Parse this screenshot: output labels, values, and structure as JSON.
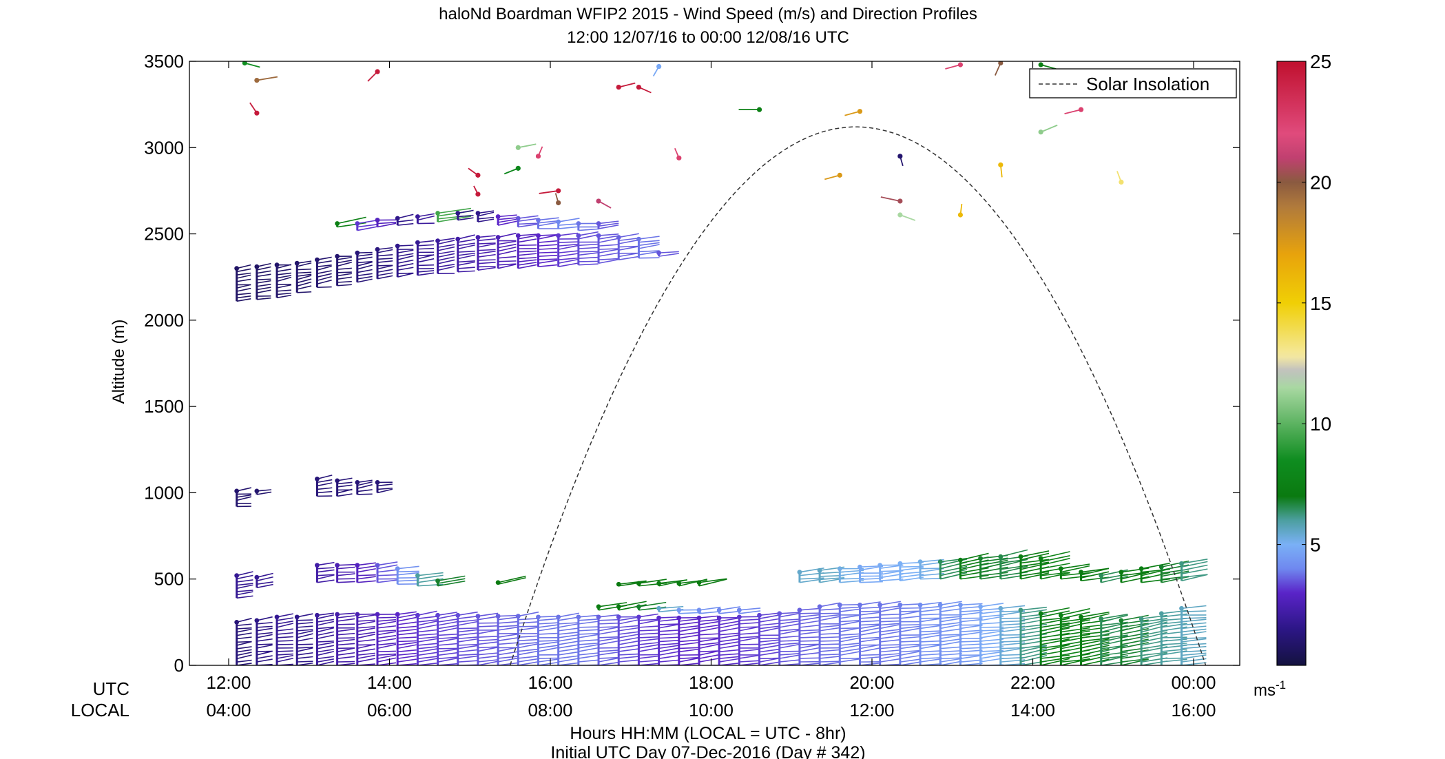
{
  "chart_data": {
    "type": "scatter",
    "title": "haloNd Boardman WFIP2 2015 - Wind Speed (m/s) and Direction Profiles",
    "subtitle": "12:00 12/07/16 to 00:00 12/08/16  UTC",
    "ylabel": "Altitude (m)",
    "xlabel": "Hours HH:MM  (LOCAL = UTC - 8hr)",
    "xlabel2": "Initial UTC Day 07-Dec-2016 (Day # 342)",
    "row_label_utc": "UTC",
    "row_label_local": "LOCAL",
    "xlim": [
      11.5,
      24.3
    ],
    "ylim": [
      0,
      3500
    ],
    "yticks": [
      0,
      500,
      1000,
      1500,
      2000,
      2500,
      3000,
      3500
    ],
    "ytick_labels": [
      "0",
      "500",
      "1000",
      "1500",
      "2000",
      "2500",
      "3000",
      "3500"
    ],
    "xticks": [
      12,
      14,
      16,
      18,
      20,
      22,
      24
    ],
    "utc_labels": [
      "12:00",
      "14:00",
      "16:00",
      "18:00",
      "20:00",
      "22:00",
      "00:00"
    ],
    "local_labels": [
      "04:00",
      "06:00",
      "08:00",
      "10:00",
      "12:00",
      "14:00",
      "16:00"
    ],
    "legend": {
      "label": "Solar Insolation",
      "position": "top-right"
    },
    "solar_insolation": {
      "start_hour": 15.5,
      "end_hour": 24.15,
      "peak_hour": 19.8,
      "peak_altitude": 3120,
      "style": "dashed",
      "color": "#333333"
    },
    "colorbar": {
      "min": 0,
      "max": 25,
      "ticks": [
        5,
        10,
        15,
        20,
        25
      ],
      "tick_labels": [
        "5",
        "10",
        "15",
        "20",
        "25"
      ],
      "unit": "ms",
      "unit_exp": "-1",
      "stops": [
        {
          "v": 0,
          "c": "#14123f"
        },
        {
          "v": 1.5,
          "c": "#2c1686"
        },
        {
          "v": 3,
          "c": "#5a24c8"
        },
        {
          "v": 4,
          "c": "#6f88ef"
        },
        {
          "v": 5,
          "c": "#7ab0f6"
        },
        {
          "v": 6,
          "c": "#4c9fa0"
        },
        {
          "v": 7,
          "c": "#0a7a10"
        },
        {
          "v": 8.5,
          "c": "#0f8d20"
        },
        {
          "v": 11.5,
          "c": "#a9d8a2"
        },
        {
          "v": 12.2,
          "c": "#c0c0c0"
        },
        {
          "v": 12.8,
          "c": "#f5e9a0"
        },
        {
          "v": 15,
          "c": "#f0cf05"
        },
        {
          "v": 17,
          "c": "#e8a30c"
        },
        {
          "v": 19,
          "c": "#b07a3c"
        },
        {
          "v": 20,
          "c": "#8a5a40"
        },
        {
          "v": 21,
          "c": "#c04070"
        },
        {
          "v": 22,
          "c": "#e04b7c"
        },
        {
          "v": 25,
          "c": "#c0102e"
        }
      ]
    },
    "profiles": [
      {
        "t": 12.1,
        "bands": [
          [
            0,
            250,
            1.2
          ],
          [
            390,
            520,
            1.8
          ],
          [
            920,
            1010,
            1.0
          ],
          [
            2110,
            2300,
            0.8
          ]
        ]
      },
      {
        "t": 12.35,
        "bands": [
          [
            0,
            260,
            1.5
          ],
          [
            450,
            510,
            1.8
          ],
          [
            990,
            1010,
            1.0
          ],
          [
            2120,
            2310,
            0.8
          ]
        ]
      },
      {
        "t": 12.6,
        "bands": [
          [
            0,
            280,
            1.8
          ],
          [
            2130,
            2320,
            0.9
          ]
        ]
      },
      {
        "t": 12.85,
        "bands": [
          [
            0,
            280,
            1.6
          ],
          [
            2160,
            2330,
            0.9
          ]
        ]
      },
      {
        "t": 13.1,
        "bands": [
          [
            0,
            290,
            2.0
          ],
          [
            480,
            580,
            2.2
          ],
          [
            980,
            1080,
            1.2
          ],
          [
            2190,
            2350,
            1.0
          ]
        ]
      },
      {
        "t": 13.35,
        "bands": [
          [
            0,
            295,
            2.3
          ],
          [
            480,
            580,
            2.5
          ],
          [
            980,
            1070,
            1.2
          ],
          [
            2200,
            2370,
            1.0
          ],
          [
            2540,
            2560,
            7.5
          ]
        ]
      },
      {
        "t": 13.6,
        "bands": [
          [
            0,
            295,
            2.5
          ],
          [
            480,
            580,
            2.8
          ],
          [
            990,
            1060,
            1.2
          ],
          [
            2220,
            2390,
            1.2
          ],
          [
            2520,
            2560,
            3.2
          ]
        ]
      },
      {
        "t": 13.85,
        "bands": [
          [
            0,
            295,
            2.8
          ],
          [
            480,
            580,
            3.5
          ],
          [
            1000,
            1060,
            1.2
          ],
          [
            2240,
            2410,
            1.3
          ],
          [
            2540,
            2580,
            2.8
          ]
        ]
      },
      {
        "t": 14.1,
        "bands": [
          [
            0,
            295,
            3.0
          ],
          [
            470,
            560,
            4.2
          ],
          [
            2250,
            2430,
            1.6
          ],
          [
            2550,
            2590,
            1.6
          ]
        ]
      },
      {
        "t": 14.35,
        "bands": [
          [
            0,
            290,
            3.2
          ],
          [
            460,
            520,
            6.0
          ],
          [
            2260,
            2450,
            1.8
          ],
          [
            2560,
            2600,
            2.0
          ]
        ]
      },
      {
        "t": 14.6,
        "bands": [
          [
            0,
            290,
            3.3
          ],
          [
            460,
            490,
            6.8
          ],
          [
            2270,
            2460,
            2.0
          ],
          [
            2570,
            2620,
            9.5
          ]
        ]
      },
      {
        "t": 14.85,
        "bands": [
          [
            0,
            290,
            3.4
          ],
          [
            2280,
            2470,
            2.2
          ],
          [
            2580,
            2620,
            1.5
          ]
        ]
      },
      {
        "t": 15.1,
        "bands": [
          [
            0,
            285,
            3.5
          ],
          [
            2290,
            2480,
            2.4
          ],
          [
            2570,
            2620,
            1.6
          ]
        ]
      },
      {
        "t": 15.35,
        "bands": [
          [
            0,
            285,
            3.6
          ],
          [
            470,
            480,
            7.0
          ],
          [
            2300,
            2480,
            2.6
          ],
          [
            2550,
            2600,
            3.0
          ]
        ]
      },
      {
        "t": 15.6,
        "bands": [
          [
            0,
            285,
            3.7
          ],
          [
            2300,
            2490,
            2.8
          ],
          [
            2540,
            2590,
            3.5
          ]
        ]
      },
      {
        "t": 15.85,
        "bands": [
          [
            0,
            280,
            3.8
          ],
          [
            2310,
            2490,
            3.0
          ],
          [
            2530,
            2580,
            3.8
          ]
        ]
      },
      {
        "t": 16.1,
        "bands": [
          [
            0,
            280,
            3.8
          ],
          [
            2310,
            2490,
            3.2
          ],
          [
            2530,
            2570,
            4.0
          ]
        ]
      },
      {
        "t": 16.35,
        "bands": [
          [
            0,
            280,
            3.8
          ],
          [
            2320,
            2490,
            3.4
          ],
          [
            2520,
            2560,
            3.8
          ]
        ]
      },
      {
        "t": 16.6,
        "bands": [
          [
            0,
            280,
            3.6
          ],
          [
            320,
            340,
            7.2
          ],
          [
            2330,
            2490,
            3.5
          ],
          [
            2530,
            2560,
            3.5
          ]
        ]
      },
      {
        "t": 16.85,
        "bands": [
          [
            0,
            280,
            3.4
          ],
          [
            320,
            340,
            7.0
          ],
          [
            460,
            470,
            7.0
          ],
          [
            2350,
            2480,
            3.6
          ]
        ]
      },
      {
        "t": 17.1,
        "bands": [
          [
            0,
            280,
            3.2
          ],
          [
            320,
            340,
            6.8
          ],
          [
            460,
            475,
            7.0
          ],
          [
            2360,
            2470,
            3.8
          ]
        ]
      },
      {
        "t": 17.35,
        "bands": [
          [
            0,
            275,
            3.1
          ],
          [
            310,
            330,
            5.5
          ],
          [
            460,
            475,
            7.2
          ],
          [
            2370,
            2390,
            3.5
          ]
        ]
      },
      {
        "t": 17.6,
        "bands": [
          [
            0,
            275,
            3.0
          ],
          [
            300,
            320,
            4.5
          ],
          [
            460,
            475,
            7.2
          ]
        ]
      },
      {
        "t": 17.85,
        "bands": [
          [
            0,
            275,
            3.0
          ],
          [
            300,
            320,
            4.2
          ],
          [
            460,
            480,
            7.0
          ]
        ]
      },
      {
        "t": 18.1,
        "bands": [
          [
            0,
            275,
            3.1
          ],
          [
            300,
            320,
            4.0
          ]
        ]
      },
      {
        "t": 18.35,
        "bands": [
          [
            0,
            280,
            3.2
          ],
          [
            300,
            320,
            4.0
          ]
        ]
      },
      {
        "t": 18.6,
        "bands": [
          [
            0,
            290,
            3.3
          ]
        ]
      },
      {
        "t": 18.85,
        "bands": [
          [
            0,
            300,
            3.5
          ]
        ]
      },
      {
        "t": 19.1,
        "bands": [
          [
            0,
            320,
            3.6
          ],
          [
            480,
            540,
            5.5
          ]
        ]
      },
      {
        "t": 19.35,
        "bands": [
          [
            0,
            340,
            3.7
          ],
          [
            480,
            550,
            5.6
          ]
        ]
      },
      {
        "t": 19.6,
        "bands": [
          [
            0,
            350,
            3.8
          ],
          [
            480,
            560,
            5.2
          ]
        ]
      },
      {
        "t": 19.85,
        "bands": [
          [
            0,
            350,
            3.8
          ],
          [
            480,
            570,
            4.8
          ]
        ]
      },
      {
        "t": 20.1,
        "bands": [
          [
            0,
            350,
            3.8
          ],
          [
            490,
            580,
            4.9
          ]
        ]
      },
      {
        "t": 20.35,
        "bands": [
          [
            0,
            350,
            3.9
          ],
          [
            490,
            590,
            5.0
          ]
        ]
      },
      {
        "t": 20.6,
        "bands": [
          [
            0,
            350,
            4.1
          ],
          [
            500,
            600,
            5.2
          ]
        ]
      },
      {
        "t": 20.85,
        "bands": [
          [
            0,
            350,
            4.2
          ],
          [
            500,
            600,
            6.5
          ]
        ]
      },
      {
        "t": 21.1,
        "bands": [
          [
            0,
            350,
            4.4
          ],
          [
            500,
            610,
            7.2
          ]
        ]
      },
      {
        "t": 21.35,
        "bands": [
          [
            0,
            340,
            4.8
          ],
          [
            500,
            620,
            6.8
          ]
        ]
      },
      {
        "t": 21.6,
        "bands": [
          [
            0,
            330,
            5.4
          ],
          [
            500,
            630,
            6.6
          ]
        ]
      },
      {
        "t": 21.85,
        "bands": [
          [
            0,
            320,
            6.2
          ],
          [
            500,
            630,
            7.2
          ]
        ]
      },
      {
        "t": 22.1,
        "bands": [
          [
            0,
            300,
            7.4
          ],
          [
            500,
            620,
            7.6
          ]
        ]
      },
      {
        "t": 22.35,
        "bands": [
          [
            0,
            290,
            7.6
          ],
          [
            500,
            560,
            7.4
          ]
        ]
      },
      {
        "t": 22.6,
        "bands": [
          [
            0,
            280,
            7.2
          ],
          [
            490,
            540,
            7.0
          ]
        ]
      },
      {
        "t": 22.85,
        "bands": [
          [
            0,
            270,
            6.5
          ],
          [
            480,
            520,
            6.5
          ]
        ]
      },
      {
        "t": 23.1,
        "bands": [
          [
            0,
            260,
            6.8
          ],
          [
            480,
            540,
            7.0
          ]
        ]
      },
      {
        "t": 23.35,
        "bands": [
          [
            0,
            270,
            6.2
          ],
          [
            480,
            560,
            7.4
          ]
        ]
      },
      {
        "t": 23.6,
        "bands": [
          [
            0,
            300,
            6.0
          ],
          [
            480,
            570,
            6.8
          ]
        ]
      },
      {
        "t": 23.85,
        "bands": [
          [
            0,
            330,
            5.6
          ],
          [
            490,
            590,
            6.2
          ]
        ]
      }
    ],
    "barbs": [
      {
        "t": 12.35,
        "z": 3390,
        "v": 19.5,
        "dx": 30,
        "dy": -5
      },
      {
        "t": 12.35,
        "z": 3200,
        "v": 24.5,
        "dx": -10,
        "dy": -15
      },
      {
        "t": 12.2,
        "z": 3490,
        "v": 8.5,
        "dx": 22,
        "dy": 6
      },
      {
        "t": 13.85,
        "z": 3440,
        "v": 24.5,
        "dx": -14,
        "dy": 14
      },
      {
        "t": 15.1,
        "z": 2840,
        "v": 24.5,
        "dx": -14,
        "dy": -10
      },
      {
        "t": 15.1,
        "z": 2730,
        "v": 24.5,
        "dx": -6,
        "dy": -12
      },
      {
        "t": 15.6,
        "z": 3000,
        "v": 11.0,
        "dx": 26,
        "dy": -5
      },
      {
        "t": 15.6,
        "z": 2880,
        "v": 8.0,
        "dx": -20,
        "dy": 8
      },
      {
        "t": 15.85,
        "z": 2950,
        "v": 22.5,
        "dx": 6,
        "dy": -14
      },
      {
        "t": 16.1,
        "z": 2750,
        "v": 24.5,
        "dx": -28,
        "dy": 4
      },
      {
        "t": 16.1,
        "z": 2680,
        "v": 20.0,
        "dx": -4,
        "dy": -14
      },
      {
        "t": 16.6,
        "z": 2690,
        "v": 21.0,
        "dx": 18,
        "dy": 10
      },
      {
        "t": 16.85,
        "z": 3350,
        "v": 24.5,
        "dx": 24,
        "dy": -6
      },
      {
        "t": 17.1,
        "z": 3350,
        "v": 24.5,
        "dx": 18,
        "dy": 8
      },
      {
        "t": 17.35,
        "z": 3470,
        "v": 4.8,
        "dx": -8,
        "dy": 14
      },
      {
        "t": 17.6,
        "z": 2940,
        "v": 22.5,
        "dx": -6,
        "dy": -14
      },
      {
        "t": 18.6,
        "z": 3220,
        "v": 7.5,
        "dx": -30,
        "dy": 0
      },
      {
        "t": 19.6,
        "z": 2840,
        "v": 17.5,
        "dx": -22,
        "dy": 6
      },
      {
        "t": 19.85,
        "z": 3210,
        "v": 17.5,
        "dx": -22,
        "dy": 6
      },
      {
        "t": 20.35,
        "z": 2950,
        "v": 1.0,
        "dx": 4,
        "dy": 14
      },
      {
        "t": 20.35,
        "z": 2690,
        "v": 20.5,
        "dx": -28,
        "dy": -6
      },
      {
        "t": 20.35,
        "z": 2610,
        "v": 11.5,
        "dx": 22,
        "dy": 8
      },
      {
        "t": 21.1,
        "z": 3480,
        "v": 22.5,
        "dx": -22,
        "dy": 6
      },
      {
        "t": 21.1,
        "z": 2610,
        "v": 16.0,
        "dx": 2,
        "dy": -16
      },
      {
        "t": 21.6,
        "z": 3490,
        "v": 20.0,
        "dx": -8,
        "dy": 18
      },
      {
        "t": 21.6,
        "z": 2900,
        "v": 16.0,
        "dx": 2,
        "dy": 18
      },
      {
        "t": 22.1,
        "z": 3480,
        "v": 7.5,
        "dx": 22,
        "dy": 6
      },
      {
        "t": 22.1,
        "z": 3090,
        "v": 11.0,
        "dx": 24,
        "dy": -10
      },
      {
        "t": 22.6,
        "z": 3220,
        "v": 22.5,
        "dx": -24,
        "dy": 6
      },
      {
        "t": 23.1,
        "z": 2800,
        "v": 13.5,
        "dx": -6,
        "dy": -16
      }
    ]
  }
}
